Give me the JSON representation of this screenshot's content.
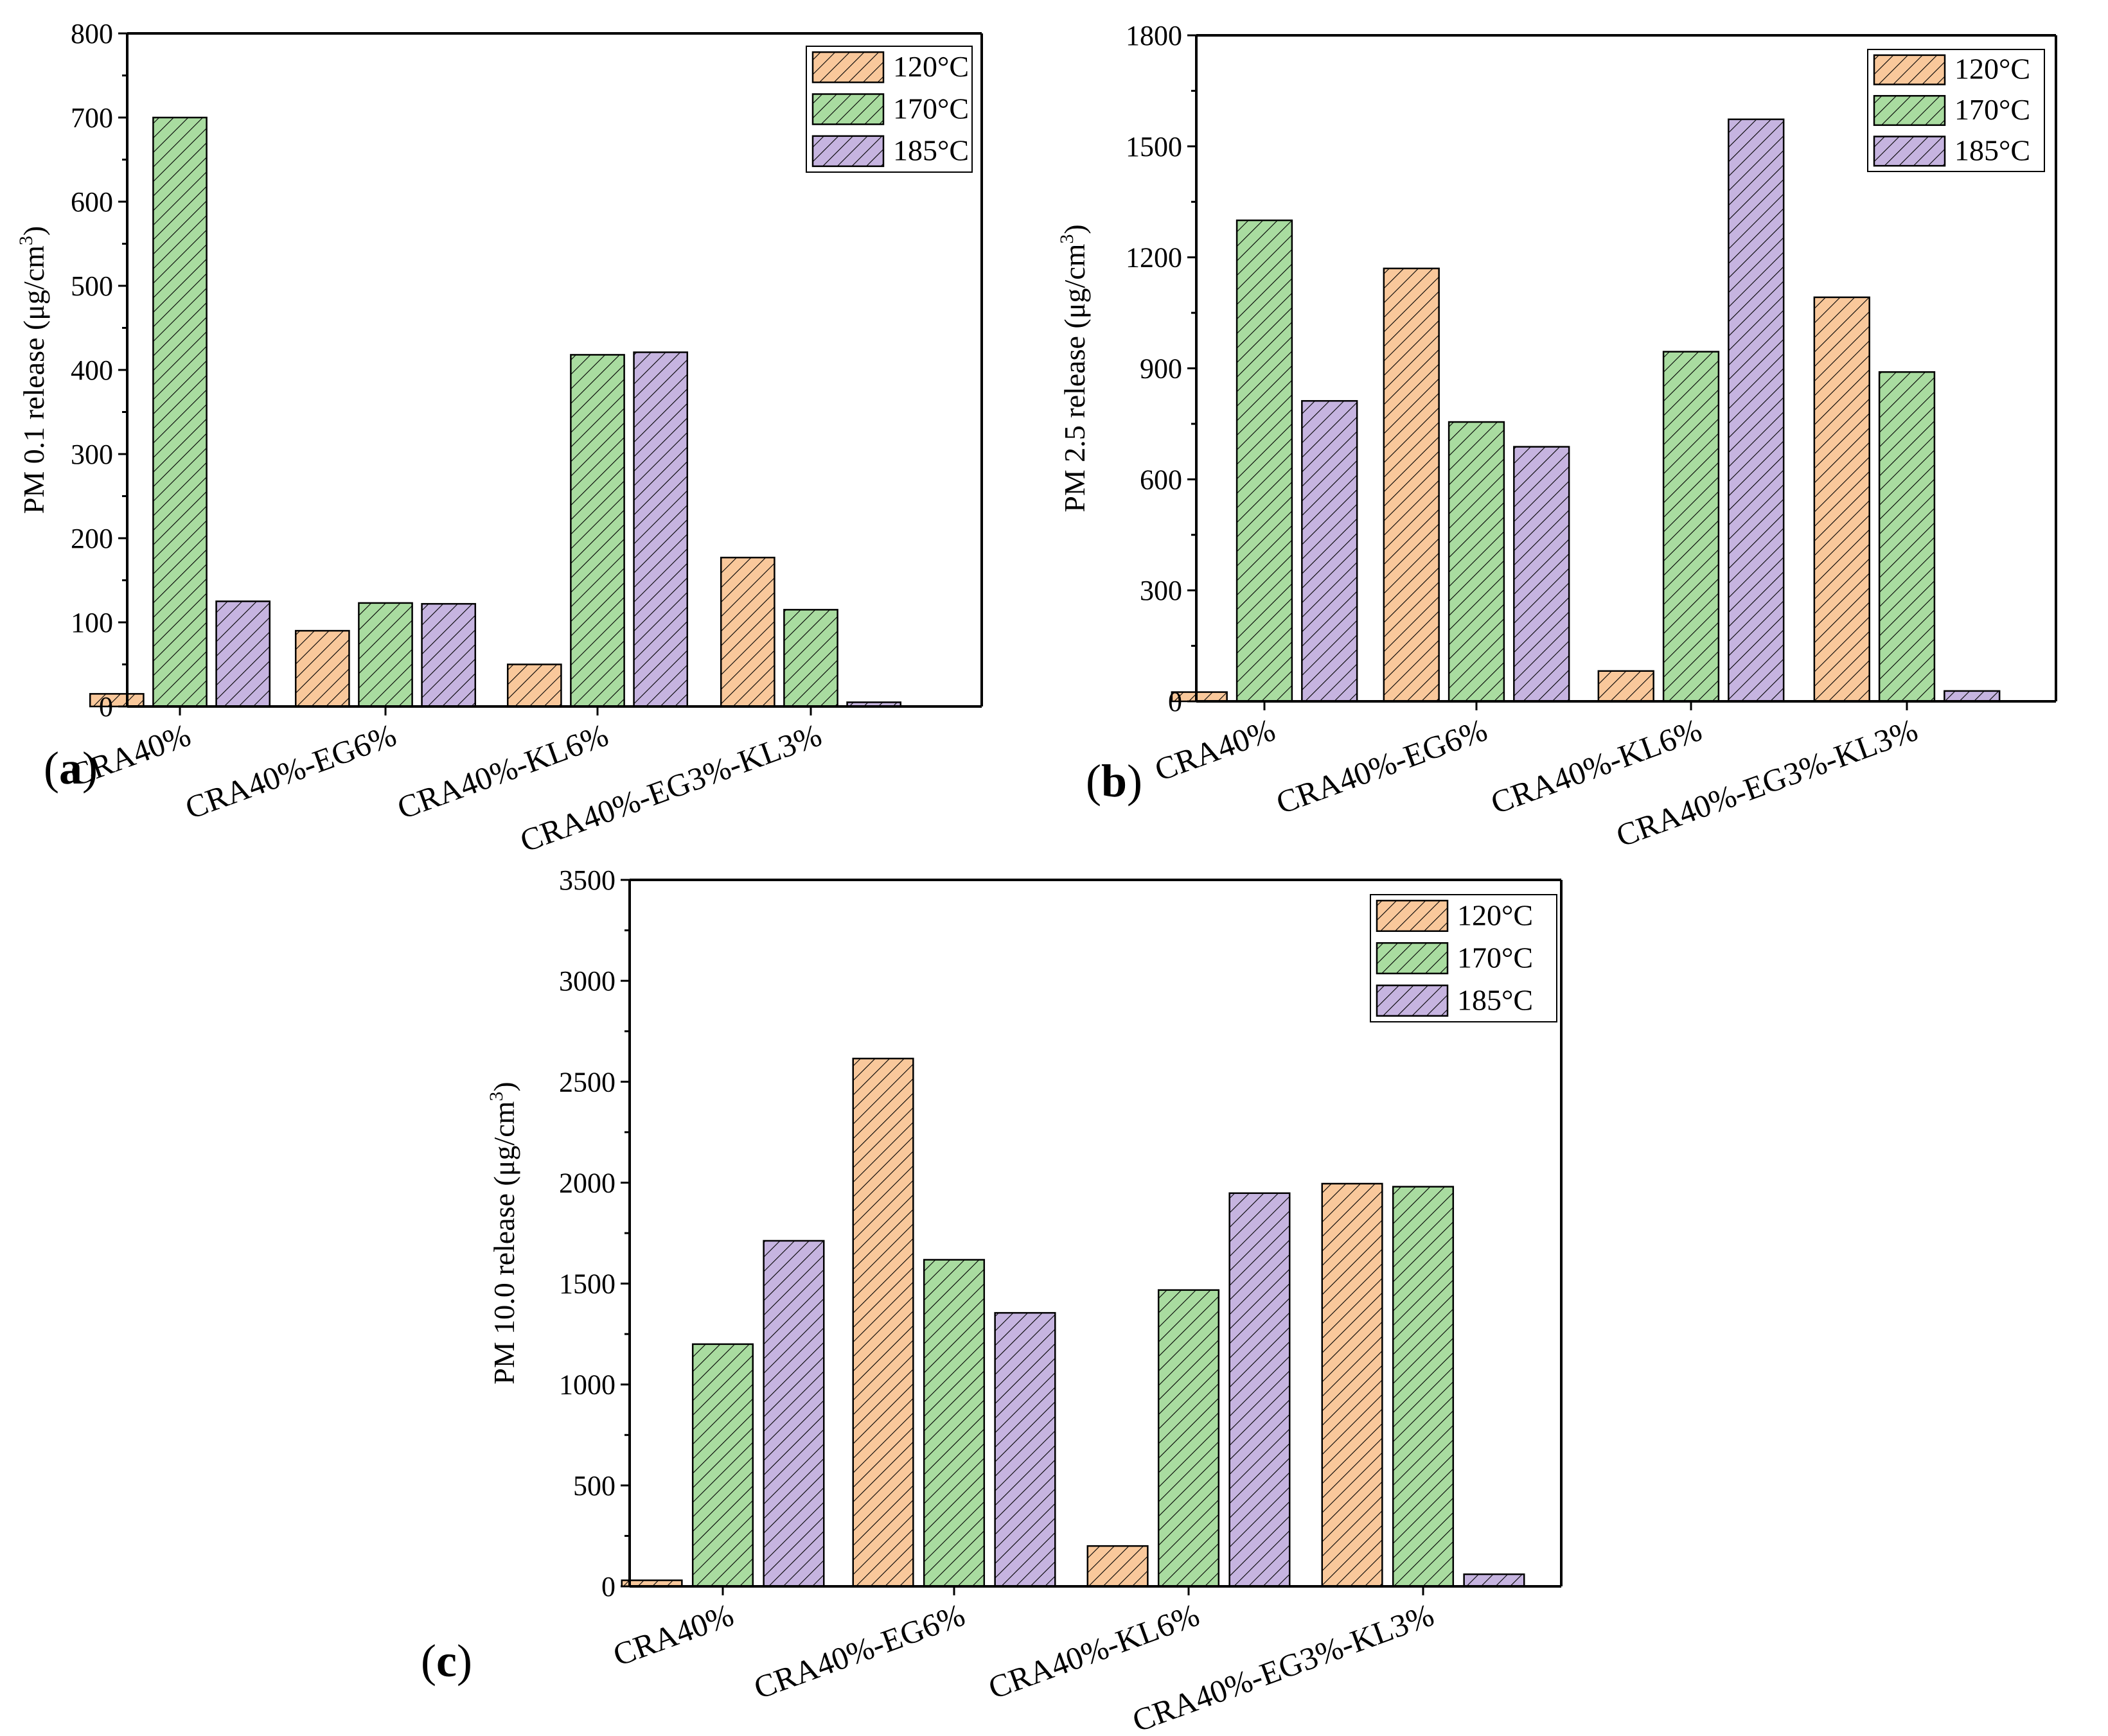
{
  "colors": {
    "120C": "#f9c89b",
    "170C": "#a9dca0",
    "185C": "#c6b4e0"
  },
  "legend": [
    "120°C",
    "170°C",
    "185°C"
  ],
  "chart_data": [
    {
      "type": "bar",
      "panel": "(a)",
      "panel_letter": "a",
      "ylabel": "PM 0.1 release (μg/cm",
      "ylabel_sup": "3",
      "ylim": [
        0,
        800
      ],
      "yticks": [
        0,
        100,
        200,
        300,
        400,
        500,
        600,
        700,
        800
      ],
      "categories": [
        "CRA40%",
        "CRA40%-EG6%",
        "CRA40%-KL6%",
        "CRA40%-EG3%-KL3%"
      ],
      "series": [
        {
          "name": "120°C",
          "values": [
            15,
            90,
            50,
            177
          ]
        },
        {
          "name": "170°C",
          "values": [
            700,
            123,
            418,
            115
          ]
        },
        {
          "name": "185°C",
          "values": [
            125,
            122,
            421,
            5
          ]
        }
      ],
      "legend_position": "top-right"
    },
    {
      "type": "bar",
      "panel": "(b)",
      "panel_letter": "b",
      "ylabel": "PM 2.5 release (μg/cm",
      "ylabel_sup": "3",
      "ylim": [
        0,
        1800
      ],
      "yticks": [
        0,
        300,
        600,
        900,
        1200,
        1500,
        1800
      ],
      "categories": [
        "CRA40%",
        "CRA40%-EG6%",
        "CRA40%-KL6%",
        "CRA40%-EG3%-KL3%"
      ],
      "series": [
        {
          "name": "120°C",
          "values": [
            25,
            1170,
            82,
            1092
          ]
        },
        {
          "name": "170°C",
          "values": [
            1300,
            755,
            945,
            890
          ]
        },
        {
          "name": "185°C",
          "values": [
            812,
            688,
            1573,
            28
          ]
        }
      ],
      "legend_position": "top-right"
    },
    {
      "type": "bar",
      "panel": "(c)",
      "panel_letter": "c",
      "ylabel": "PM 10.0 release (μg/cm",
      "ylabel_sup": "3",
      "ylim": [
        0,
        3500
      ],
      "yticks": [
        0,
        500,
        1000,
        1500,
        2000,
        2500,
        3000,
        3500
      ],
      "categories": [
        "CRA40%",
        "CRA40%-EG6%",
        "CRA40%-KL6%",
        "CRA40%-EG3%-KL3%"
      ],
      "series": [
        {
          "name": "120°C",
          "values": [
            30,
            2615,
            200,
            1995
          ]
        },
        {
          "name": "170°C",
          "values": [
            1200,
            1618,
            1468,
            1980
          ]
        },
        {
          "name": "185°C",
          "values": [
            1712,
            1355,
            1948,
            60
          ]
        }
      ],
      "legend_position": "top-right"
    }
  ]
}
